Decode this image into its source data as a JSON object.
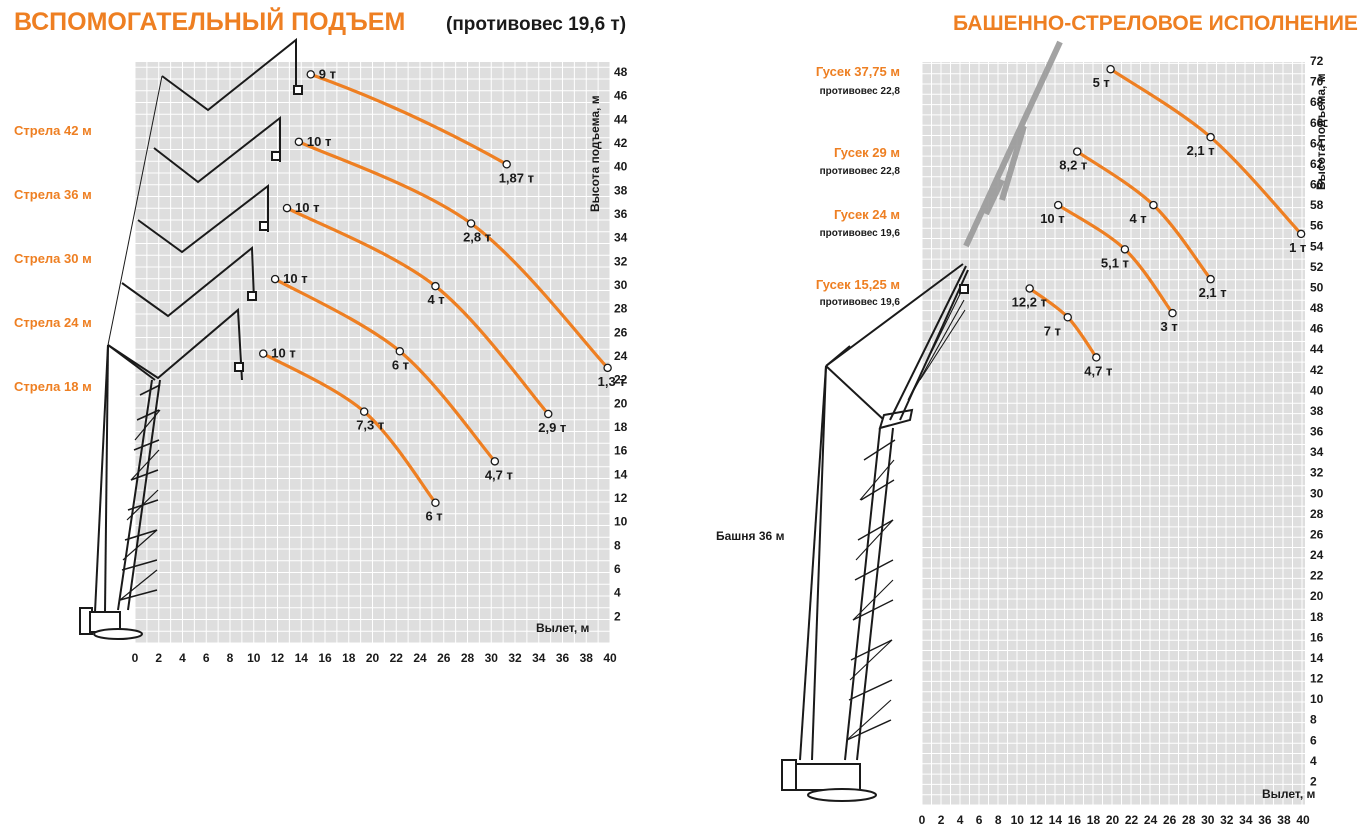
{
  "chart_data": [
    {
      "type": "line",
      "title": "ВСПОМОГАТЕЛЬНЫЙ ПОДЪЕМ",
      "subtitle": "(противовес 19,6 т)",
      "xlabel": "Вылет, м",
      "ylabel": "Высота подъема, м",
      "xlim": [
        0,
        40
      ],
      "ylim": [
        0,
        48
      ],
      "x_ticks": [
        "0",
        "2",
        "4",
        "6",
        "8",
        "10",
        "12",
        "14",
        "16",
        "18",
        "20",
        "22",
        "24",
        "26",
        "28",
        "30",
        "32",
        "34",
        "36",
        "38",
        "40"
      ],
      "y_ticks": [
        "2",
        "4",
        "6",
        "8",
        "10",
        "12",
        "14",
        "16",
        "18",
        "20",
        "22",
        "24",
        "26",
        "28",
        "30",
        "32",
        "34",
        "36",
        "38",
        "40",
        "42",
        "44",
        "46",
        "48"
      ],
      "grid": true,
      "configs": [
        "Стрела 42 м",
        "Стрела 36 м",
        "Стрела 30 м",
        "Стрела 24 м",
        "Стрела 18 м"
      ],
      "series": [
        {
          "points": [
            {
              "x": 14.8,
              "y": 47.8,
              "label": "9 т"
            },
            {
              "x": 31.3,
              "y": 40.2,
              "label": "1,87 т"
            }
          ]
        },
        {
          "points": [
            {
              "x": 13.8,
              "y": 42.1,
              "label": "10 т"
            },
            {
              "x": 28.3,
              "y": 35.2,
              "label": "2,8 т"
            },
            {
              "x": 39.8,
              "y": 23.0,
              "label": "1,3 т"
            }
          ]
        },
        {
          "points": [
            {
              "x": 12.8,
              "y": 36.5,
              "label": "10 т"
            },
            {
              "x": 25.3,
              "y": 29.9,
              "label": "4 т"
            },
            {
              "x": 34.8,
              "y": 19.1,
              "label": "2,9 т"
            }
          ]
        },
        {
          "points": [
            {
              "x": 11.8,
              "y": 30.5,
              "label": "10 т"
            },
            {
              "x": 22.3,
              "y": 24.4,
              "label": "6 т"
            },
            {
              "x": 30.3,
              "y": 15.1,
              "label": "4,7 т"
            }
          ]
        },
        {
          "points": [
            {
              "x": 10.8,
              "y": 24.2,
              "label": "10 т"
            },
            {
              "x": 19.3,
              "y": 19.3,
              "label": "7,3 т"
            },
            {
              "x": 25.3,
              "y": 11.6,
              "label": "6 т"
            }
          ]
        }
      ]
    },
    {
      "type": "line",
      "title": "БАШЕННО-СТРЕЛОВОЕ ИСПОЛНЕНИЕ",
      "xlabel": "Вылет, м",
      "ylabel": "Высота подъема, м",
      "xlim": [
        0,
        40
      ],
      "ylim": [
        0,
        72
      ],
      "x_ticks": [
        "0",
        "2",
        "4",
        "6",
        "8",
        "10",
        "12",
        "14",
        "16",
        "18",
        "20",
        "22",
        "24",
        "26",
        "28",
        "30",
        "32",
        "34",
        "36",
        "38",
        "40"
      ],
      "y_ticks": [
        "2",
        "4",
        "6",
        "8",
        "10",
        "12",
        "14",
        "16",
        "18",
        "20",
        "22",
        "24",
        "26",
        "28",
        "30",
        "32",
        "34",
        "36",
        "38",
        "40",
        "42",
        "44",
        "46",
        "48",
        "50",
        "52",
        "54",
        "56",
        "58",
        "60",
        "62",
        "64",
        "66",
        "68",
        "70",
        "72"
      ],
      "grid": true,
      "tower_label": "Башня 36 м",
      "configs": [
        {
          "name": "Гусек 37,75 м",
          "note": "противовес 22,8"
        },
        {
          "name": "Гусек 29 м",
          "note": "противовес 22,8"
        },
        {
          "name": "Гусек 24 м",
          "note": "противовес 19,6"
        },
        {
          "name": "Гусек 15,25 м",
          "note": "противовес 19,6"
        }
      ],
      "series": [
        {
          "points": [
            {
              "x": 19.8,
              "y": 71.2,
              "label": "5 т"
            },
            {
              "x": 30.3,
              "y": 64.6,
              "label": "2,1 т"
            },
            {
              "x": 39.8,
              "y": 55.2,
              "label": "1 т"
            }
          ]
        },
        {
          "points": [
            {
              "x": 16.3,
              "y": 63.2,
              "label": "8,2 т"
            },
            {
              "x": 24.3,
              "y": 58.0,
              "label": "4 т"
            },
            {
              "x": 30.3,
              "y": 50.8,
              "label": "2,1 т"
            }
          ]
        },
        {
          "points": [
            {
              "x": 14.3,
              "y": 58.0,
              "label": "10 т"
            },
            {
              "x": 21.3,
              "y": 53.7,
              "label": "5,1 т"
            },
            {
              "x": 26.3,
              "y": 47.5,
              "label": "3 т"
            }
          ]
        },
        {
          "points": [
            {
              "x": 11.3,
              "y": 49.9,
              "label": "12,2 т"
            },
            {
              "x": 15.3,
              "y": 47.1,
              "label": "7 т"
            },
            {
              "x": 18.3,
              "y": 43.2,
              "label": "4,7 т"
            }
          ]
        }
      ]
    }
  ],
  "colors": {
    "accent": "#ee7f22",
    "grid_bg": "#dedede",
    "grid_line": "#ffffff",
    "ink": "#1a1a1a",
    "jib_grey": "#9a9a9a"
  }
}
